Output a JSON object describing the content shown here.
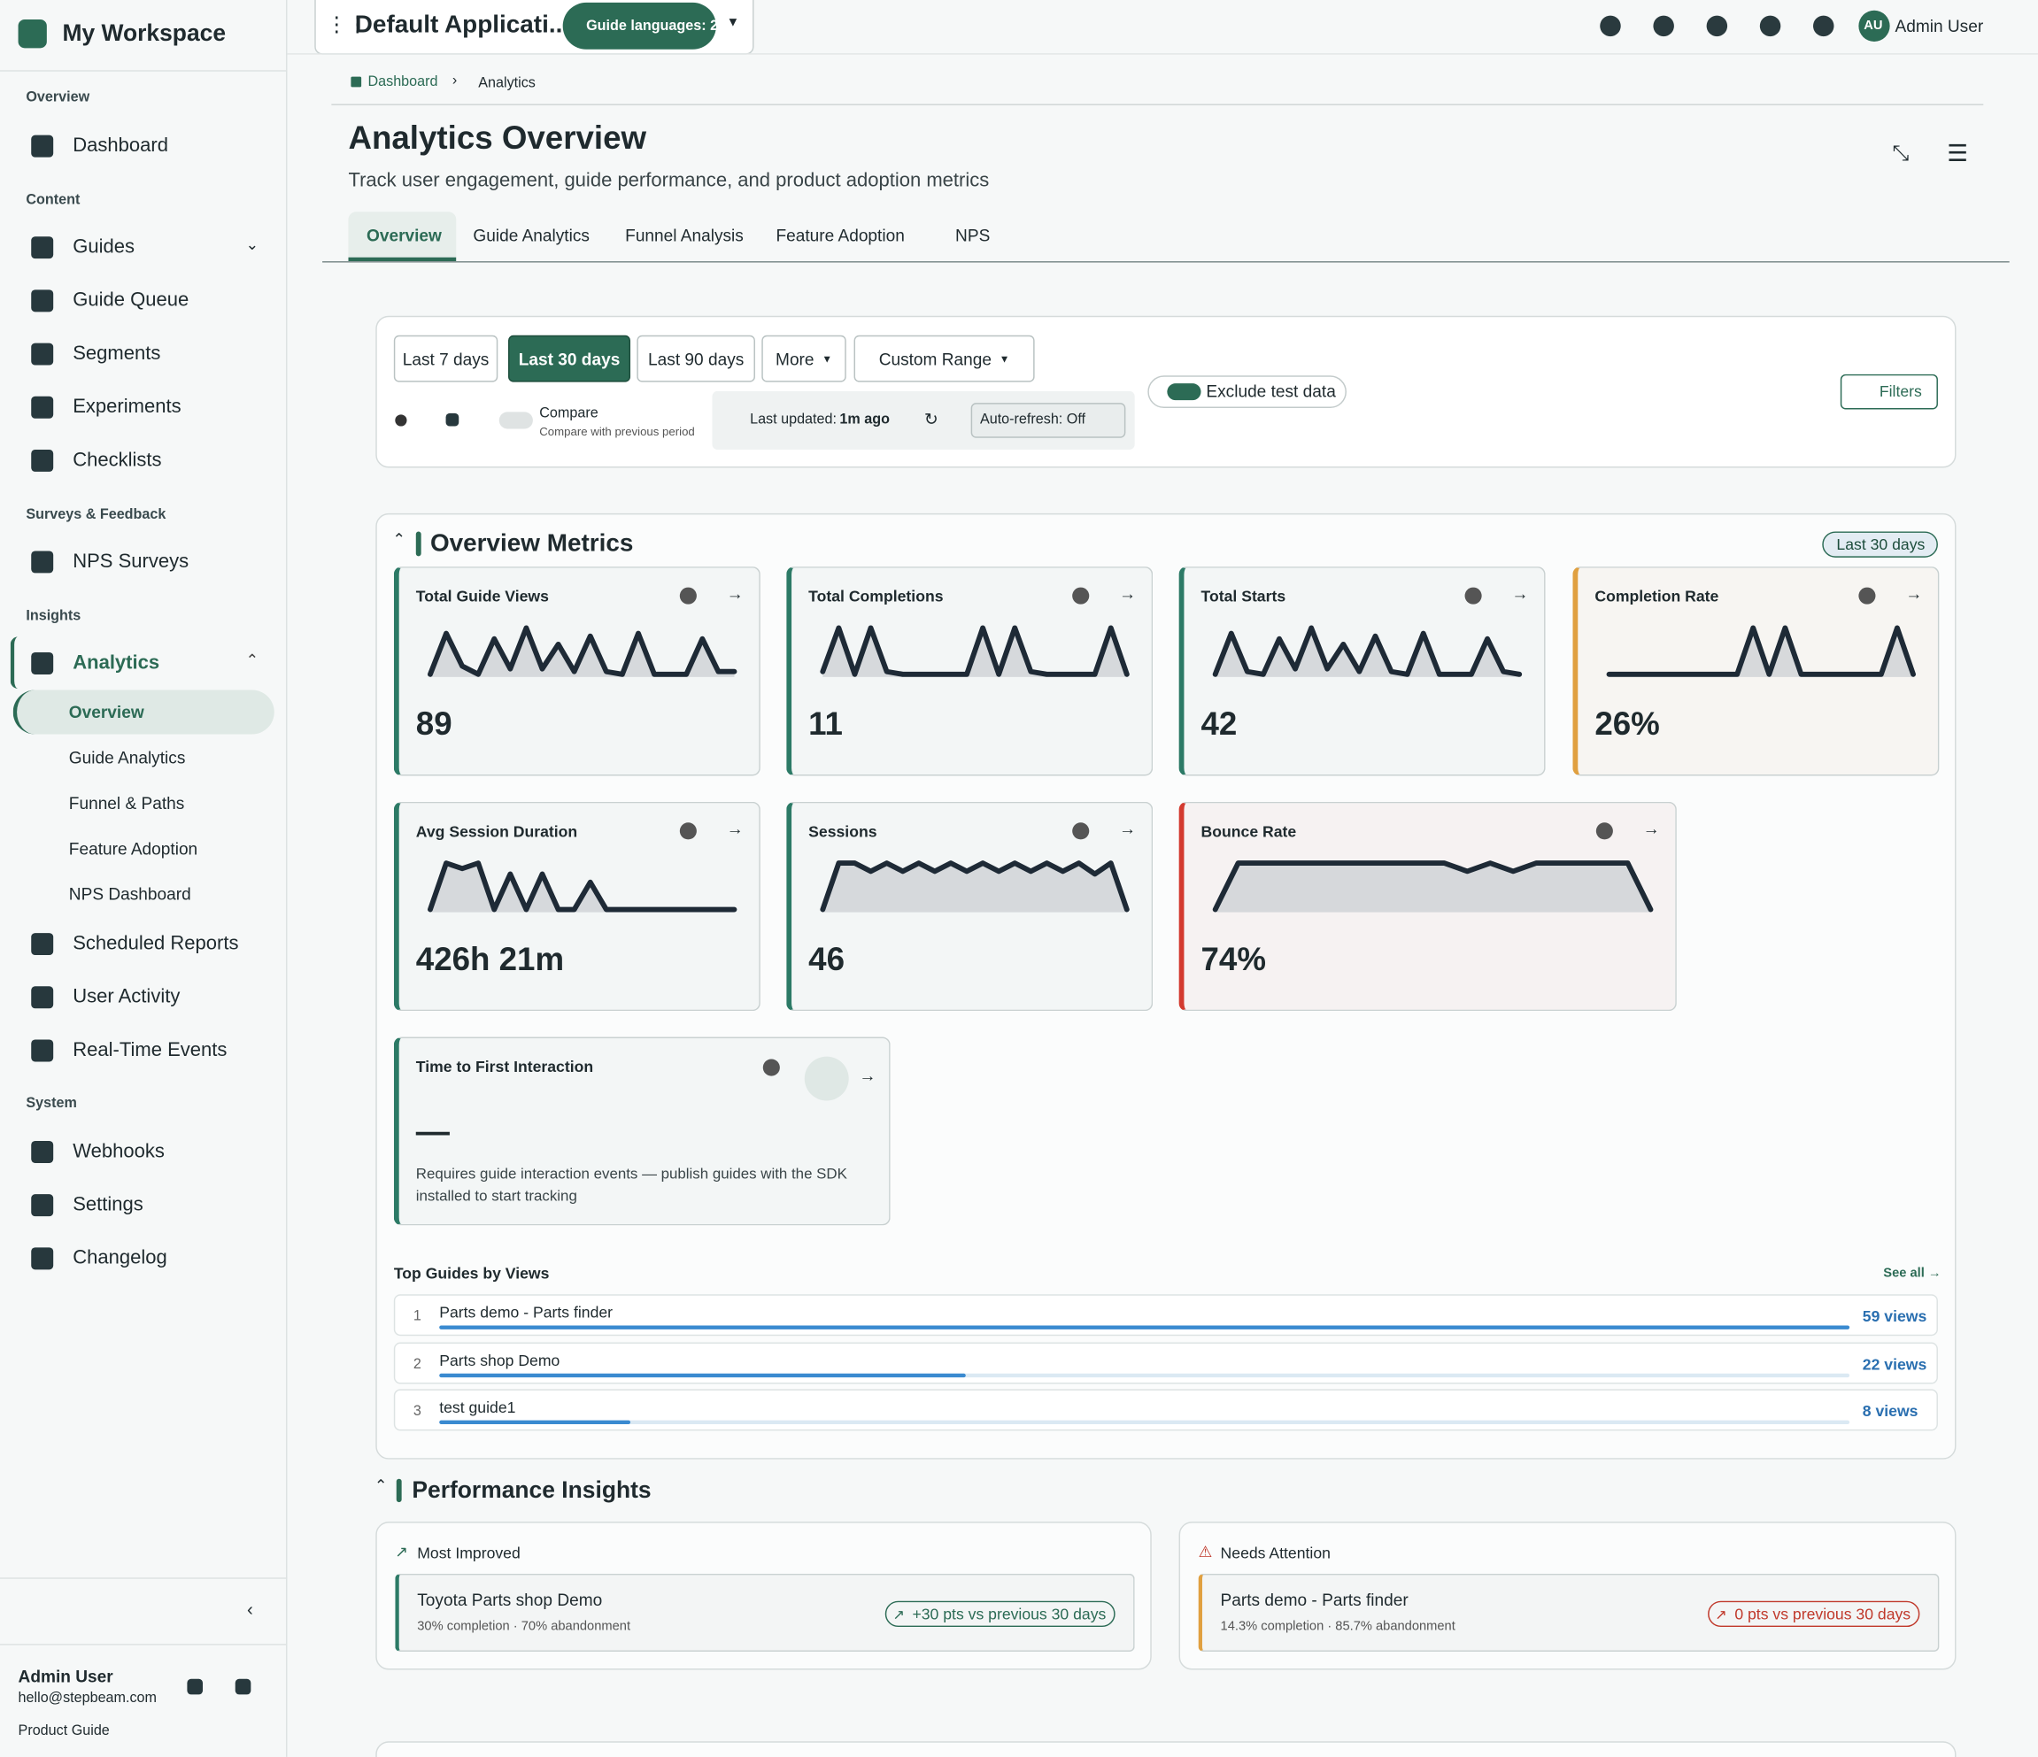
{
  "sidebar": {
    "workspace": "My Workspace",
    "sections": [
      {
        "title": "Overview",
        "items": [
          {
            "label": "Dashboard"
          }
        ]
      },
      {
        "title": "Content",
        "items": [
          {
            "label": "Guides"
          },
          {
            "label": "Guide Queue"
          },
          {
            "label": "Segments"
          },
          {
            "label": "Experiments"
          },
          {
            "label": "Checklists"
          }
        ]
      },
      {
        "title": "Surveys & Feedback",
        "items": [
          {
            "label": "NPS Surveys"
          }
        ]
      },
      {
        "title": "Insights",
        "items": [
          {
            "label": "Analytics",
            "children": [
              "Overview",
              "Guide Analytics",
              "Funnel & Paths",
              "Feature Adoption",
              "NPS Dashboard"
            ]
          },
          {
            "label": "Scheduled Reports"
          },
          {
            "label": "User Activity"
          },
          {
            "label": "Real-Time Events"
          }
        ]
      },
      {
        "title": "System",
        "items": [
          {
            "label": "Webhooks"
          },
          {
            "label": "Settings"
          },
          {
            "label": "Changelog"
          }
        ]
      }
    ],
    "user": {
      "name": "Admin User",
      "email": "hello@stepbeam.com",
      "link": "Product Guide"
    }
  },
  "topbar": {
    "app": "Default Applicati...",
    "languages": "Guide languages: 2",
    "initials": "AU",
    "user": "Admin User"
  },
  "breadcrumb": [
    "Dashboard",
    "Analytics"
  ],
  "header": {
    "title": "Analytics Overview",
    "subtitle": "Track user engagement, guide performance, and product adoption metrics"
  },
  "tabs": [
    "Overview",
    "Guide Analytics",
    "Funnel Analysis",
    "Feature Adoption",
    "NPS"
  ],
  "filters": {
    "ranges": [
      "Last 7 days",
      "Last 30 days",
      "Last 90 days",
      "More",
      "Custom Range"
    ],
    "compare": "Compare",
    "compare_sub": "Compare with previous period",
    "last_updated_label": "Last updated:",
    "last_updated": "1m ago",
    "auto_refresh": "Auto-refresh: Off",
    "exclude": "Exclude test data",
    "filters": "Filters"
  },
  "metrics": {
    "title": "Overview Metrics",
    "badge": "Last 30 days",
    "cards": [
      {
        "title": "Total Guide Views",
        "value": "89"
      },
      {
        "title": "Total Completions",
        "value": "11"
      },
      {
        "title": "Total Starts",
        "value": "42"
      },
      {
        "title": "Completion Rate",
        "value": "26%"
      },
      {
        "title": "Avg Session Duration",
        "value": "426h 21m"
      },
      {
        "title": "Sessions",
        "value": "46"
      },
      {
        "title": "Bounce Rate",
        "value": "74%"
      }
    ],
    "ttfi": {
      "title": "Time to First Interaction",
      "value": "—",
      "note": "Requires guide interaction events — publish guides with the SDK installed to start tracking"
    }
  },
  "top_guides": {
    "title": "Top Guides by Views",
    "see_all": "See all →",
    "rows": [
      {
        "rank": 1,
        "name": "Parts demo - Parts finder",
        "views": 59,
        "label": "59 views"
      },
      {
        "rank": 2,
        "name": "Parts shop Demo",
        "views": 22,
        "label": "22 views"
      },
      {
        "rank": 3,
        "name": "test guide1",
        "views": 8,
        "label": "8 views"
      }
    ]
  },
  "insights": {
    "title": "Performance Insights",
    "most_improved": {
      "title": "Most Improved",
      "name": "Toyota Parts shop Demo",
      "detail": "30% completion · 70% abandonment",
      "badge": "+30 pts vs previous 30 days"
    },
    "needs_attention": {
      "title": "Needs Attention",
      "name": "Parts demo - Parts finder",
      "detail": "14.3% completion · 85.7% abandonment",
      "badge": "0 pts vs previous 30 days"
    }
  }
}
